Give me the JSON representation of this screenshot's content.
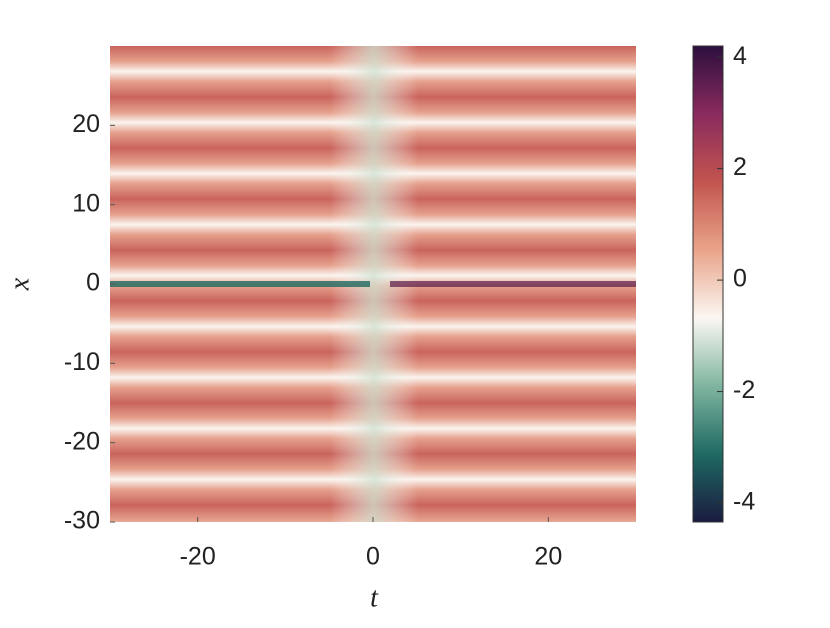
{
  "chart_data": {
    "type": "heatmap",
    "xlabel": "t",
    "ylabel": "x",
    "xlim": [
      -30,
      30
    ],
    "xticks": [
      -20,
      0,
      20
    ],
    "ylim": [
      -30,
      30
    ],
    "yticks": [
      -30,
      -20,
      -10,
      0,
      10,
      20
    ],
    "colorbar": {
      "lim": [
        -4.34,
        4.2
      ],
      "ticks": [
        -4,
        -2,
        0,
        2,
        4
      ],
      "colors": [
        "#1a1b3f",
        "#1e6a62",
        "#7fb59f",
        "#fbf7f2",
        "#e9a489",
        "#c2554f",
        "#8a2a5e",
        "#2c0f3d"
      ]
    }
  }
}
